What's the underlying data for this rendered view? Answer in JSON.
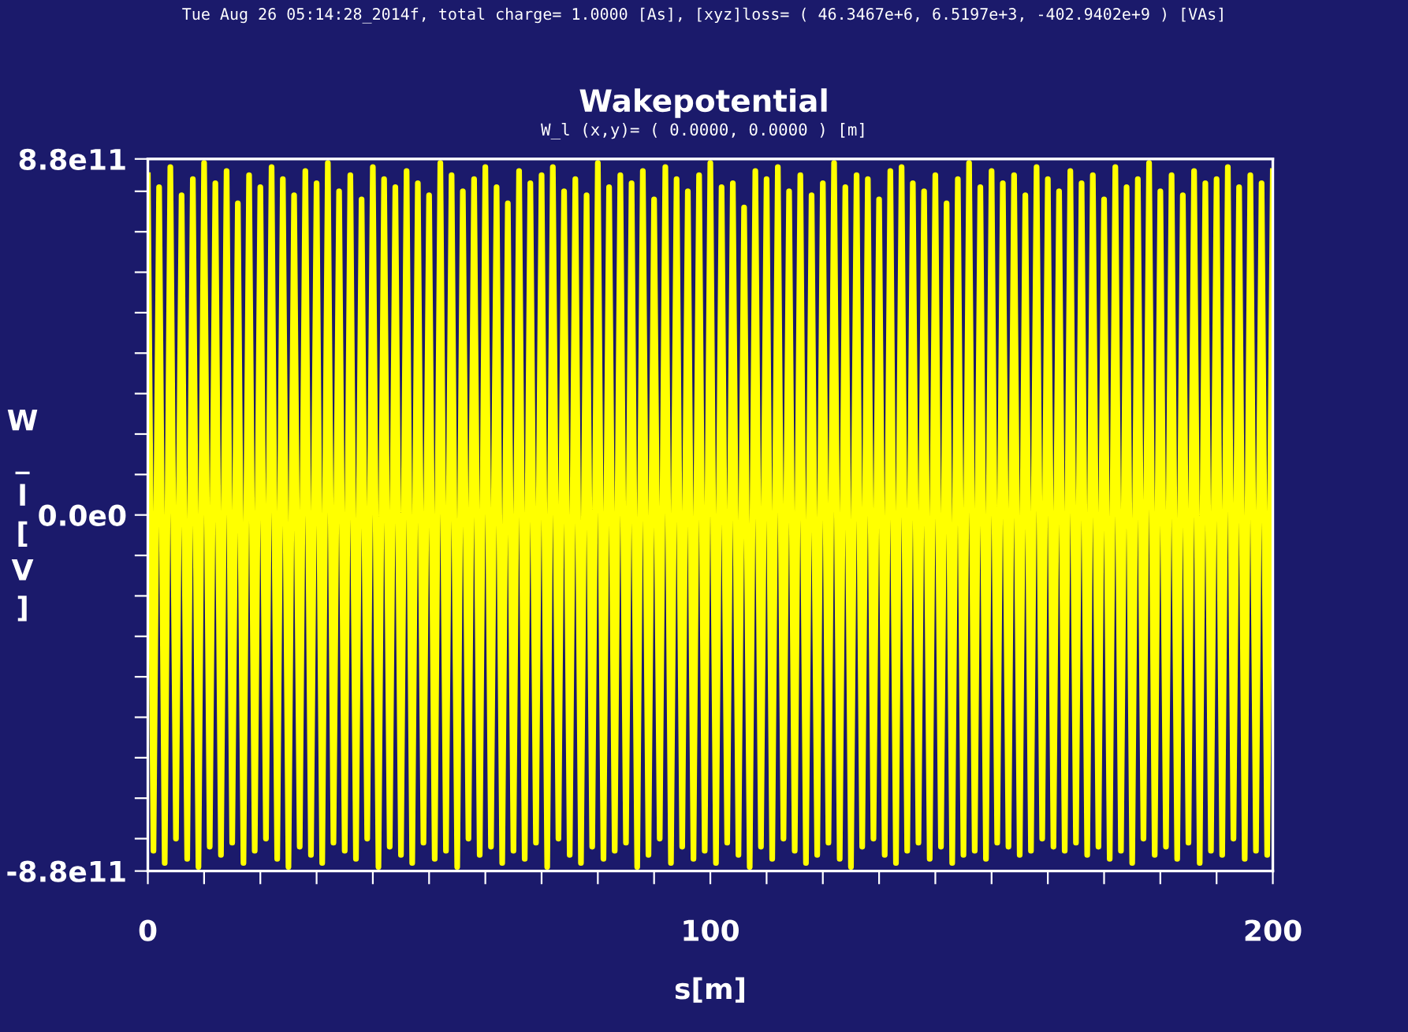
{
  "chart_data": {
    "type": "line",
    "title": "Wakepotential",
    "subtitle": "W_l (x,y)= ( 0.0000, 0.0000 ) [m]",
    "annotations": [
      "Tue Aug 26 05:14:28_2014f, total charge= 1.0000 [As], [xyz]loss= ( 46.3467e+6, 6.5197e+3, -402.9402e+9 ) [VAs]"
    ],
    "xlabel": "s[m]",
    "ylabel": "W_l[V]",
    "x": [
      0,
      1,
      2,
      3,
      4,
      5,
      6,
      7,
      8,
      9,
      10,
      11,
      12,
      13,
      14,
      15,
      16,
      17,
      18,
      19,
      20,
      21,
      22,
      23,
      24,
      25,
      26,
      27,
      28,
      29,
      30,
      31,
      32,
      33,
      34,
      35,
      36,
      37,
      38,
      39,
      40,
      41,
      42,
      43,
      44,
      45,
      46,
      47,
      48,
      49,
      50,
      51,
      52,
      53,
      54,
      55,
      56,
      57,
      58,
      59,
      60,
      61,
      62,
      63,
      64,
      65,
      66,
      67,
      68,
      69,
      70,
      71,
      72,
      73,
      74,
      75,
      76,
      77,
      78,
      79,
      80,
      81,
      82,
      83,
      84,
      85,
      86,
      87,
      88,
      89,
      90,
      91,
      92,
      93,
      94,
      95,
      96,
      97,
      98,
      99,
      100,
      101,
      102,
      103,
      104,
      105,
      106,
      107,
      108,
      109,
      110,
      111,
      112,
      113,
      114,
      115,
      116,
      117,
      118,
      119,
      120,
      121,
      122,
      123,
      124,
      125,
      126,
      127,
      128,
      129,
      130,
      131,
      132,
      133,
      134,
      135,
      136,
      137,
      138,
      139,
      140,
      141,
      142,
      143,
      144,
      145,
      146,
      147,
      148,
      149,
      150,
      151,
      152,
      153,
      154,
      155,
      156,
      157,
      158,
      159,
      160,
      161,
      162,
      163,
      164,
      165,
      166,
      167,
      168,
      169,
      170,
      171,
      172,
      173,
      174,
      175,
      176,
      177,
      178,
      179,
      180,
      181,
      182,
      183,
      184,
      185,
      186,
      187,
      188,
      189,
      190,
      191,
      192,
      193,
      194,
      195,
      196,
      197,
      198,
      199,
      200
    ],
    "series": [
      {
        "color": "#ffff00",
        "values": [
          840000000000.0,
          -830000000000.0,
          810000000000.0,
          -860000000000.0,
          860000000000.0,
          -800000000000.0,
          790000000000.0,
          -850000000000.0,
          830000000000.0,
          -870000000000.0,
          870000000000.0,
          -820000000000.0,
          820000000000.0,
          -840000000000.0,
          850000000000.0,
          -810000000000.0,
          770000000000.0,
          -860000000000.0,
          840000000000.0,
          -830000000000.0,
          810000000000.0,
          -800000000000.0,
          860000000000.0,
          -850000000000.0,
          830000000000.0,
          -870000000000.0,
          790000000000.0,
          -820000000000.0,
          850000000000.0,
          -840000000000.0,
          820000000000.0,
          -860000000000.0,
          870000000000.0,
          -810000000000.0,
          800000000000.0,
          -830000000000.0,
          840000000000.0,
          -850000000000.0,
          780000000000.0,
          -800000000000.0,
          860000000000.0,
          -870000000000.0,
          830000000000.0,
          -820000000000.0,
          810000000000.0,
          -840000000000.0,
          850000000000.0,
          -860000000000.0,
          820000000000.0,
          -810000000000.0,
          790000000000.0,
          -850000000000.0,
          870000000000.0,
          -830000000000.0,
          840000000000.0,
          -870000000000.0,
          800000000000.0,
          -800000000000.0,
          830000000000.0,
          -840000000000.0,
          860000000000.0,
          -820000000000.0,
          810000000000.0,
          -860000000000.0,
          770000000000.0,
          -830000000000.0,
          850000000000.0,
          -850000000000.0,
          820000000000.0,
          -810000000000.0,
          840000000000.0,
          -870000000000.0,
          860000000000.0,
          -800000000000.0,
          800000000000.0,
          -840000000000.0,
          830000000000.0,
          -860000000000.0,
          790000000000.0,
          -820000000000.0,
          870000000000.0,
          -850000000000.0,
          810000000000.0,
          -830000000000.0,
          840000000000.0,
          -810000000000.0,
          820000000000.0,
          -870000000000.0,
          850000000000.0,
          -840000000000.0,
          780000000000.0,
          -800000000000.0,
          860000000000.0,
          -860000000000.0,
          830000000000.0,
          -820000000000.0,
          800000000000.0,
          -850000000000.0,
          840000000000.0,
          -830000000000.0,
          870000000000.0,
          -860000000000.0,
          810000000000.0,
          -810000000000.0,
          820000000000.0,
          -840000000000.0,
          760000000000.0,
          -870000000000.0,
          850000000000.0,
          -820000000000.0,
          830000000000.0,
          -850000000000.0,
          860000000000.0,
          -800000000000.0,
          800000000000.0,
          -830000000000.0,
          840000000000.0,
          -860000000000.0,
          790000000000.0,
          -840000000000.0,
          820000000000.0,
          -810000000000.0,
          870000000000.0,
          -850000000000.0,
          810000000000.0,
          -870000000000.0,
          840000000000.0,
          -820000000000.0,
          830000000000.0,
          -800000000000.0,
          780000000000.0,
          -840000000000.0,
          850000000000.0,
          -860000000000.0,
          860000000000.0,
          -830000000000.0,
          820000000000.0,
          -810000000000.0,
          800000000000.0,
          -850000000000.0,
          840000000000.0,
          -820000000000.0,
          770000000000.0,
          -860000000000.0,
          830000000000.0,
          -840000000000.0,
          870000000000.0,
          -830000000000.0,
          810000000000.0,
          -850000000000.0,
          850000000000.0,
          -810000000000.0,
          820000000000.0,
          -820000000000.0,
          840000000000.0,
          -840000000000.0,
          790000000000.0,
          -830000000000.0,
          860000000000.0,
          -800000000000.0,
          830000000000.0,
          -820000000000.0,
          800000000000.0,
          -830000000000.0,
          850000000000.0,
          -810000000000.0,
          820000000000.0,
          -840000000000.0,
          840000000000.0,
          -820000000000.0,
          780000000000.0,
          -850000000000.0,
          860000000000.0,
          -830000000000.0,
          810000000000.0,
          -860000000000.0,
          830000000000.0,
          -800000000000.0,
          870000000000.0,
          -840000000000.0,
          800000000000.0,
          -820000000000.0,
          840000000000.0,
          -850000000000.0,
          790000000000.0,
          -810000000000.0,
          850000000000.0,
          -860000000000.0,
          820000000000.0,
          -830000000000.0,
          830000000000.0,
          -840000000000.0,
          860000000000.0,
          -800000000000.0,
          810000000000.0,
          -850000000000.0,
          840000000000.0,
          -830000000000.0,
          820000000000.0,
          -840000000000.0,
          850000000000.0
        ]
      }
    ],
    "xlim": [
      0,
      200
    ],
    "ylim": [
      -880000000000.0,
      880000000000.0
    ],
    "xticks": [
      0,
      {
        "value": 10,
        "label": null
      },
      {
        "value": 20,
        "label": null
      },
      {
        "value": 30,
        "label": null
      },
      {
        "value": 40,
        "label": null
      },
      {
        "value": 50,
        "label": null
      },
      {
        "value": 60,
        "label": null
      },
      {
        "value": 70,
        "label": null
      },
      {
        "value": 80,
        "label": null
      },
      {
        "value": 90,
        "label": null
      },
      100,
      {
        "value": 110,
        "label": null
      },
      {
        "value": 120,
        "label": null
      },
      {
        "value": 130,
        "label": null
      },
      {
        "value": 140,
        "label": null
      },
      {
        "value": 150,
        "label": null
      },
      {
        "value": 160,
        "label": null
      },
      {
        "value": 170,
        "label": null
      },
      {
        "value": 180,
        "label": null
      },
      {
        "value": 190,
        "label": null
      },
      200
    ],
    "yticks": [
      {
        "value": -880000000000.0,
        "label": "-8.8e11"
      },
      {
        "value": -800000000000.0,
        "label": null
      },
      {
        "value": -700000000000.0,
        "label": null
      },
      {
        "value": -600000000000.0,
        "label": null
      },
      {
        "value": -500000000000.0,
        "label": null
      },
      {
        "value": -400000000000.0,
        "label": null
      },
      {
        "value": -300000000000.0,
        "label": null
      },
      {
        "value": -200000000000.0,
        "label": null
      },
      {
        "value": -100000000000.0,
        "label": null
      },
      {
        "value": 0,
        "label": "0.0e0"
      },
      {
        "value": 100000000000.0,
        "label": null
      },
      {
        "value": 200000000000.0,
        "label": null
      },
      {
        "value": 300000000000.0,
        "label": null
      },
      {
        "value": 400000000000.0,
        "label": null
      },
      {
        "value": 500000000000.0,
        "label": null
      },
      {
        "value": 600000000000.0,
        "label": null
      },
      {
        "value": 700000000000.0,
        "label": null
      },
      {
        "value": 800000000000.0,
        "label": null
      },
      {
        "value": 880000000000.0,
        "label": "8.8e11"
      }
    ],
    "grid": false,
    "marker": "none",
    "line_style": "solid"
  }
}
